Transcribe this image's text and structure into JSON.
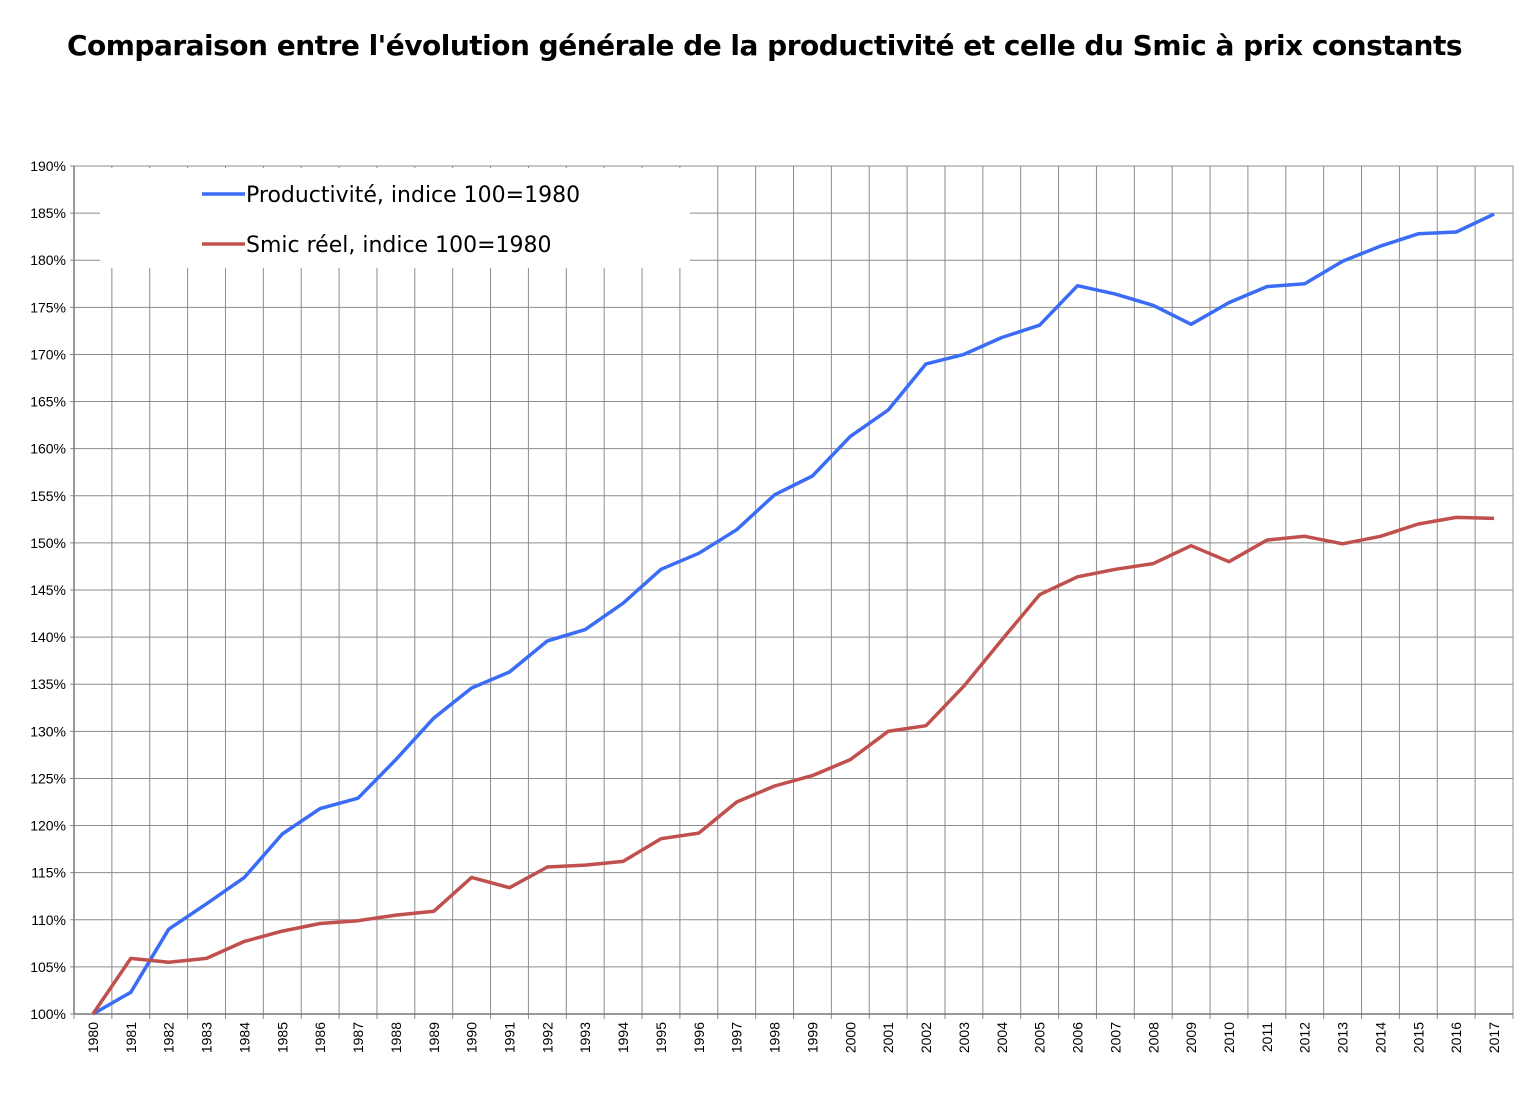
{
  "chart_data": {
    "type": "line",
    "title": "Comparaison entre l'évolution générale de la productivité et celle du Smic à prix constants",
    "xlabel": "",
    "ylabel": "",
    "ylim": [
      100,
      190
    ],
    "y_ticks": [
      "100%",
      "105%",
      "110%",
      "115%",
      "120%",
      "125%",
      "130%",
      "135%",
      "140%",
      "145%",
      "150%",
      "155%",
      "160%",
      "165%",
      "170%",
      "175%",
      "180%",
      "185%",
      "190%"
    ],
    "grid": true,
    "legend_position": "top-left",
    "categories": [
      "1980",
      "1981",
      "1982",
      "1983",
      "1984",
      "1985",
      "1986",
      "1987",
      "1988",
      "1989",
      "1990",
      "1991",
      "1992",
      "1993",
      "1994",
      "1995",
      "1996",
      "1997",
      "1998",
      "1999",
      "2000",
      "2001",
      "2002",
      "2003",
      "2004",
      "2005",
      "2006",
      "2007",
      "2008",
      "2009",
      "2010",
      "2011",
      "2012",
      "2013",
      "2014",
      "2015",
      "2016",
      "2017"
    ],
    "series": [
      {
        "name": "Productivité, indice 100=1980",
        "color": "#3b6cf6",
        "values": [
          100,
          102.3,
          109.0,
          111.7,
          114.5,
          119.1,
          121.8,
          122.9,
          127.0,
          131.4,
          134.6,
          136.3,
          139.6,
          140.8,
          143.6,
          147.2,
          148.9,
          151.4,
          155.1,
          157.1,
          161.3,
          164.1,
          169.0,
          170.0,
          171.8,
          173.1,
          177.3,
          176.4,
          175.2,
          173.2,
          175.5,
          177.2,
          177.5,
          179.9,
          181.5,
          182.8,
          183.0,
          184.9
        ]
      },
      {
        "name": "Smic réel, indice 100=1980",
        "color": "#c0504d",
        "values": [
          100,
          105.9,
          105.5,
          105.9,
          107.7,
          108.8,
          109.6,
          109.9,
          110.5,
          110.9,
          114.5,
          113.4,
          115.6,
          115.8,
          116.2,
          118.6,
          119.2,
          122.5,
          124.2,
          125.3,
          127.0,
          130.0,
          130.6,
          134.8,
          139.7,
          144.5,
          146.4,
          147.2,
          147.8,
          149.7,
          148.0,
          150.3,
          150.7,
          149.9,
          150.7,
          152.0,
          152.7,
          152.6
        ]
      }
    ]
  }
}
